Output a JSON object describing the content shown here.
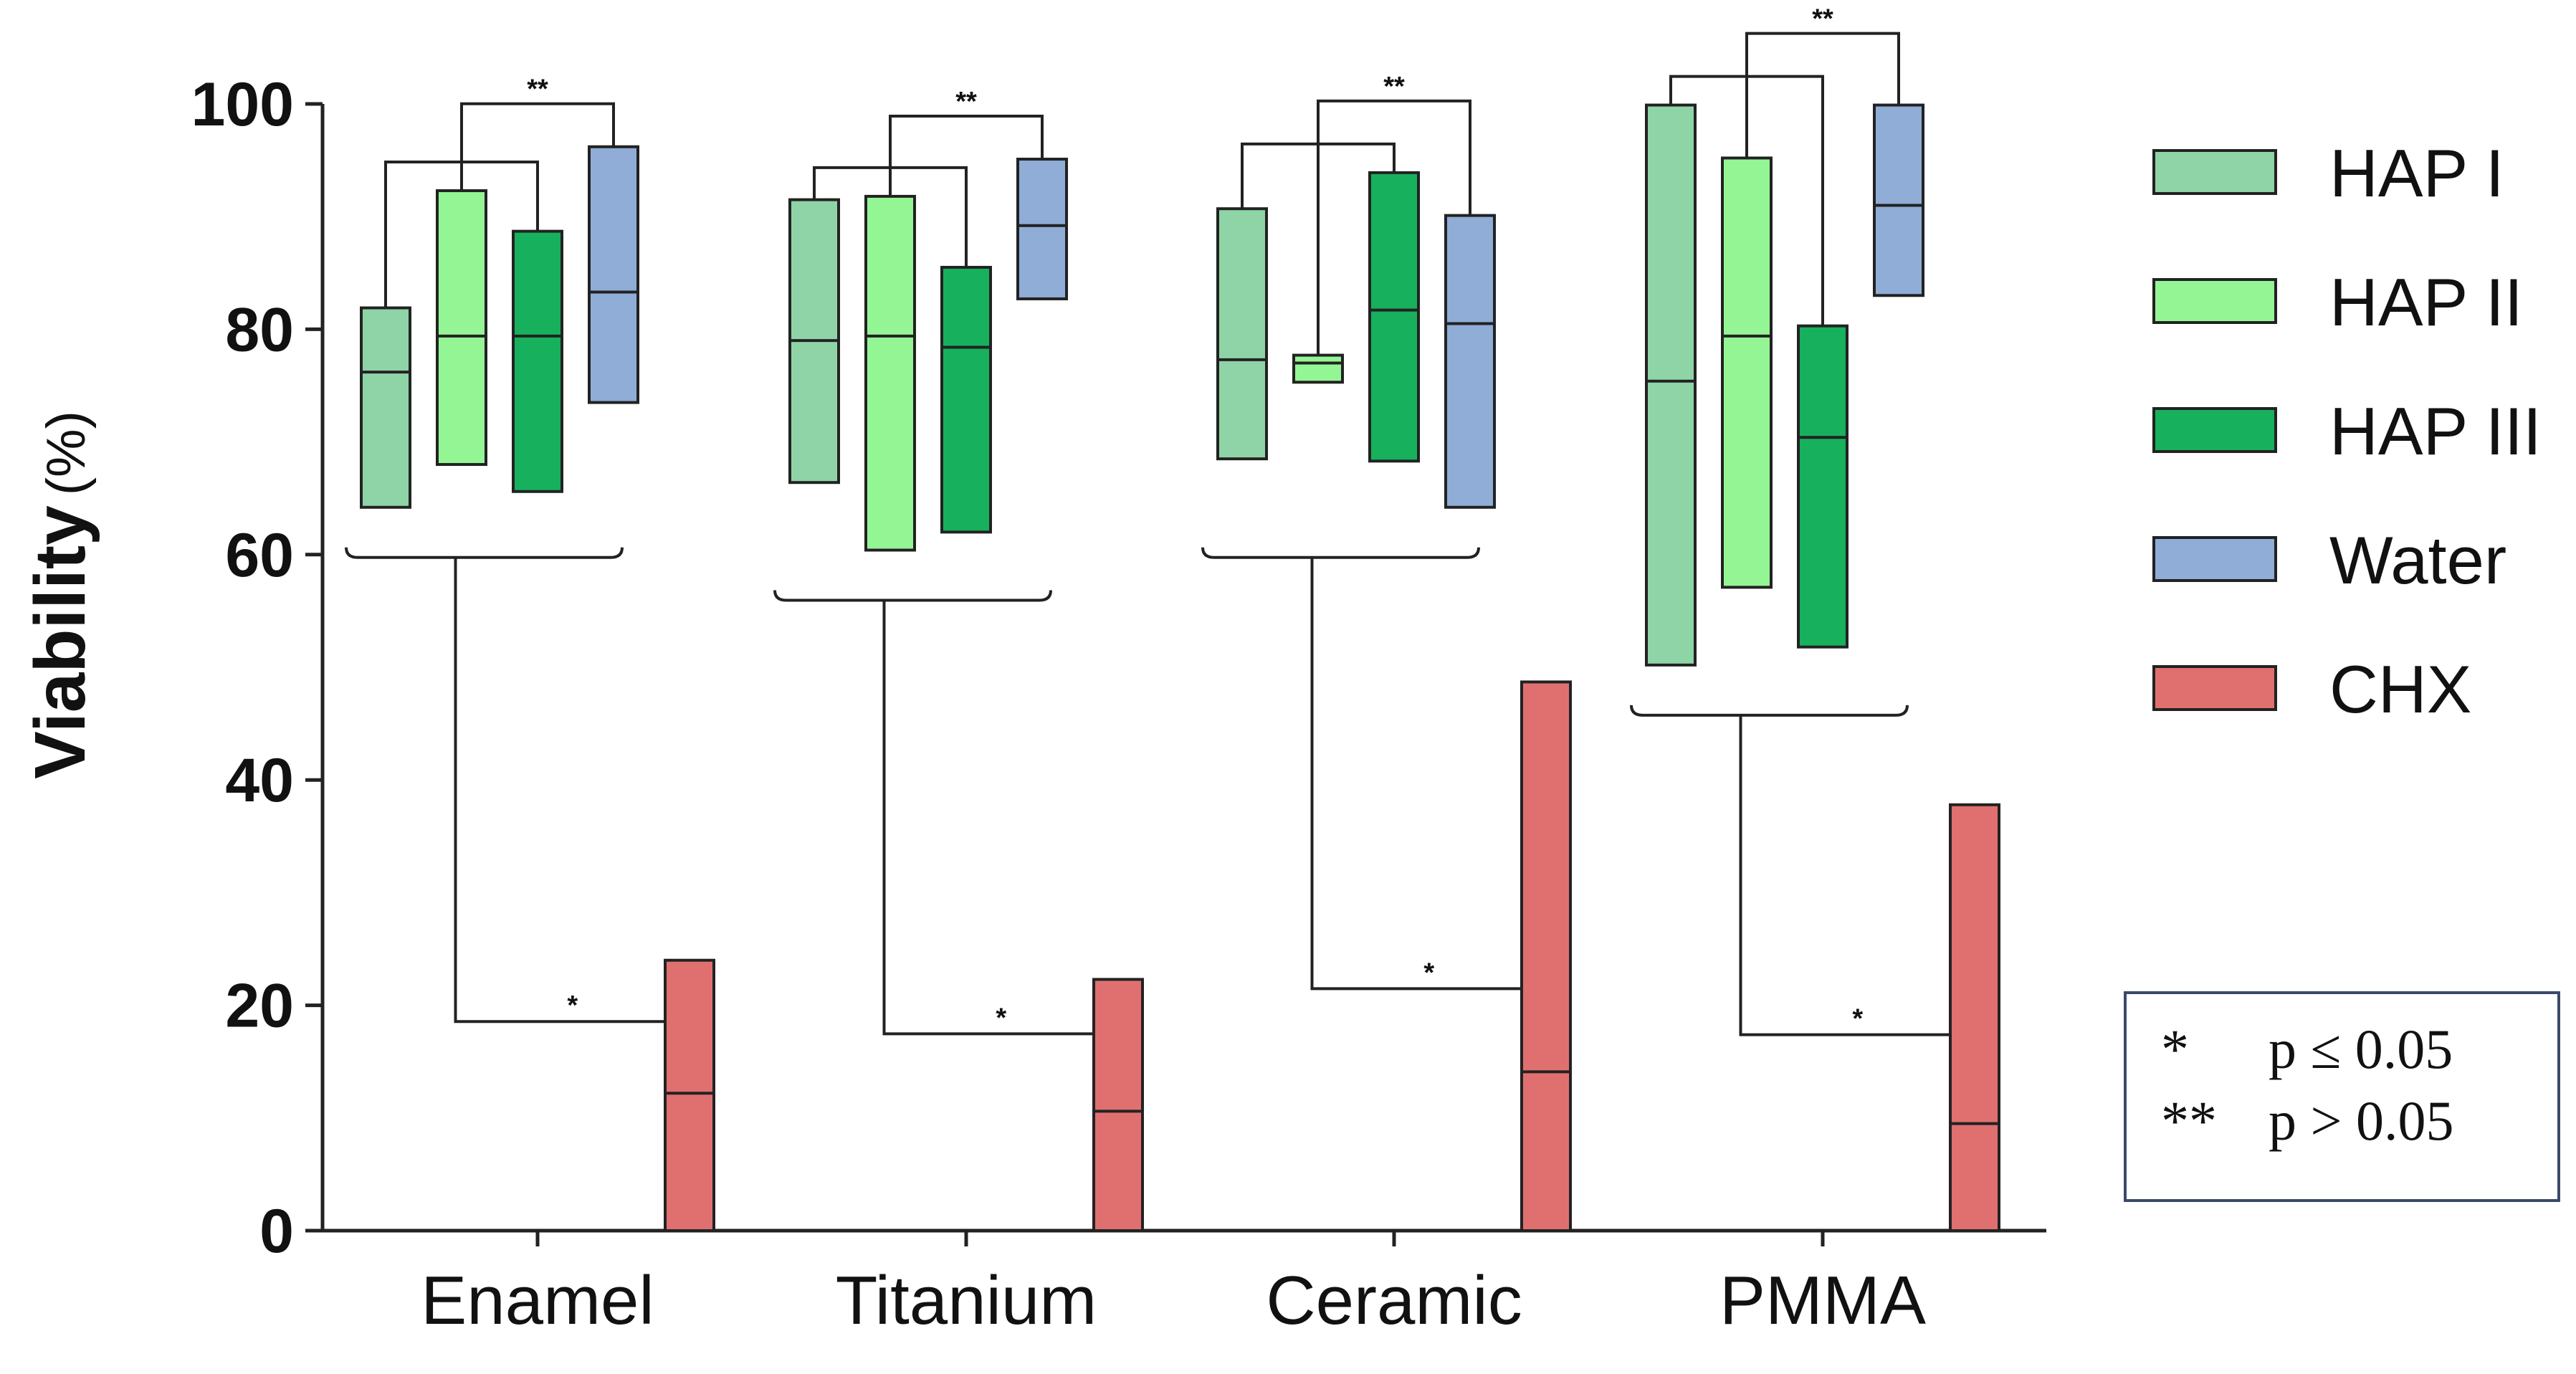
{
  "chart_data": {
    "type": "box",
    "title": "",
    "xlabel": "",
    "ylabel": "Viability",
    "ylabel_unit": "(%)",
    "ylim": [
      0,
      100
    ],
    "yticks": [
      "0",
      "20",
      "40",
      "60",
      "80",
      "100"
    ],
    "categories": [
      "Enamel",
      "Titanium",
      "Ceramic",
      "PMMA"
    ],
    "series": [
      {
        "name": "HAP I",
        "color": "#8fd4a6",
        "boxes": [
          {
            "low": 64.2,
            "median": 76.2,
            "high": 81.9
          },
          {
            "low": 66.4,
            "median": 79.0,
            "high": 91.5
          },
          {
            "low": 68.5,
            "median": 77.3,
            "high": 90.7
          },
          {
            "low": 50.2,
            "median": 75.4,
            "high": 99.9
          }
        ]
      },
      {
        "name": "HAP II",
        "color": "#94f594",
        "boxes": [
          {
            "low": 68.0,
            "median": 79.4,
            "high": 92.3
          },
          {
            "low": 60.4,
            "median": 79.4,
            "high": 91.8
          },
          {
            "low": 75.3,
            "median": 77.0,
            "high": 77.7
          },
          {
            "low": 57.1,
            "median": 79.4,
            "high": 95.2
          }
        ]
      },
      {
        "name": "HAP III",
        "color": "#17b05c",
        "boxes": [
          {
            "low": 65.6,
            "median": 79.4,
            "high": 88.7
          },
          {
            "low": 62.0,
            "median": 78.4,
            "high": 85.5
          },
          {
            "low": 68.3,
            "median": 81.7,
            "high": 93.9
          },
          {
            "low": 51.8,
            "median": 70.4,
            "high": 80.3
          }
        ]
      },
      {
        "name": "Water",
        "color": "#8fadd6",
        "boxes": [
          {
            "low": 73.5,
            "median": 83.3,
            "high": 96.2
          },
          {
            "low": 82.7,
            "median": 89.2,
            "high": 95.1
          },
          {
            "low": 64.2,
            "median": 80.5,
            "high": 90.1
          },
          {
            "low": 83.0,
            "median": 91.0,
            "high": 99.9
          }
        ]
      },
      {
        "name": "CHX",
        "color": "#e07070",
        "boxes": [
          {
            "low": 0,
            "median": 12.2,
            "high": 24.0
          },
          {
            "low": 0,
            "median": 10.6,
            "high": 22.3
          },
          {
            "low": 0,
            "median": 14.1,
            "high": 48.7
          },
          {
            "low": 0,
            "median": 9.5,
            "high": 37.8
          }
        ]
      }
    ],
    "annotations": [
      {
        "between": "HAP I/HAP II/HAP III vs Water",
        "label": "**"
      },
      {
        "between": "HAP I/HAP II/HAP III/Water vs CHX",
        "label": "*"
      }
    ],
    "significance_note": [
      {
        "symbol": "*",
        "text": "p ≤ 0.05"
      },
      {
        "symbol": "**",
        "text": "p > 0.05"
      }
    ],
    "legend_position": "right"
  }
}
